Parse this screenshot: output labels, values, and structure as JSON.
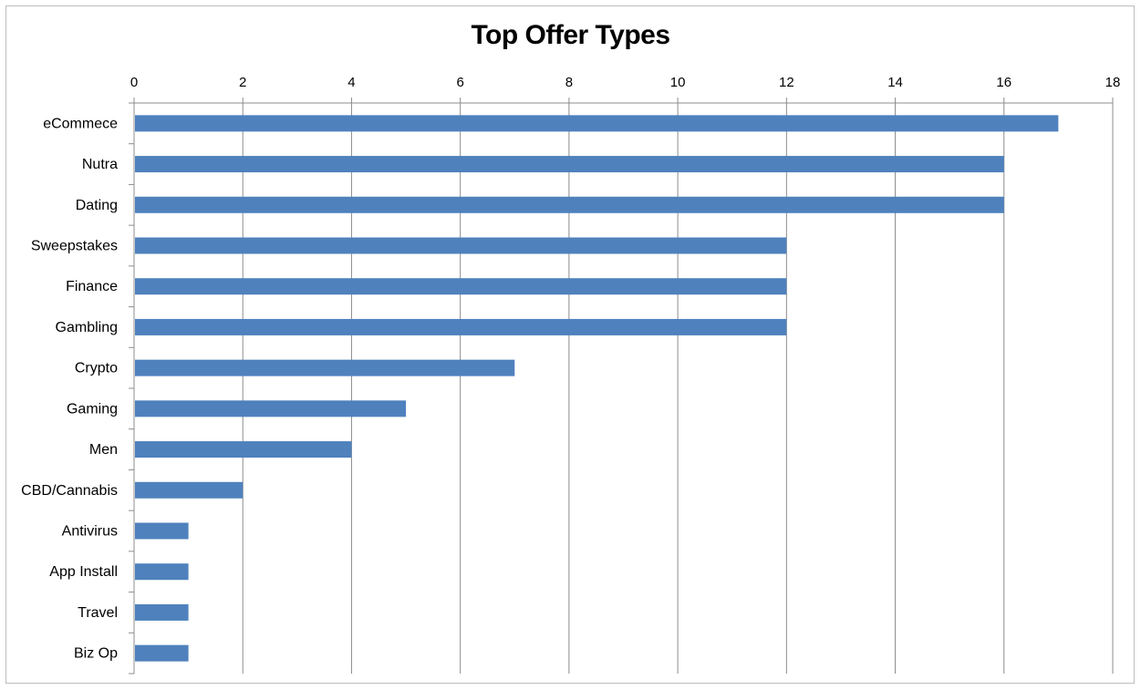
{
  "chart_data": {
    "type": "bar",
    "orientation": "horizontal",
    "title": "Top Offer Types",
    "xlabel": "",
    "ylabel": "",
    "categories": [
      "eCommece",
      "Nutra",
      "Dating",
      "Sweepstakes",
      "Finance",
      "Gambling",
      "Crypto",
      "Gaming",
      "Men",
      "CBD/Cannabis",
      "Antivirus",
      "App Install",
      "Travel",
      "Biz Op"
    ],
    "values": [
      17,
      16,
      16,
      12,
      12,
      12,
      7,
      5,
      4,
      2,
      1,
      1,
      1,
      1
    ],
    "xlim": [
      0,
      18
    ],
    "xticks": [
      "0",
      "2",
      "4",
      "6",
      "8",
      "10",
      "12",
      "14",
      "16",
      "18"
    ],
    "axis_position": "top",
    "grid": true,
    "legend": "none",
    "colors": {
      "bar": "#4f81bd",
      "grid": "#8c8c8c",
      "axis": "#8c8c8c"
    }
  }
}
